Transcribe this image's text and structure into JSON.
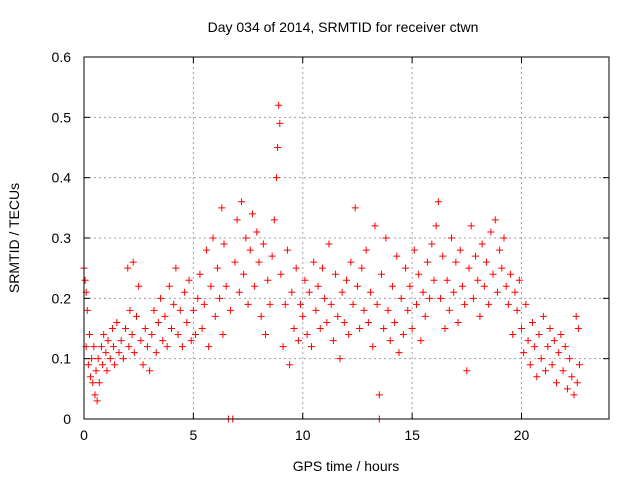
{
  "chart_data": {
    "type": "scatter",
    "title": "Day 034 of 2014, SRMTID for receiver ctwn",
    "xlabel": "GPS time / hours",
    "ylabel": "SRMTID / TECUs",
    "xlim": [
      0,
      24
    ],
    "ylim": [
      0,
      0.6
    ],
    "x_ticks": [
      0,
      5,
      10,
      15,
      20
    ],
    "x_tick_labels": [
      "0",
      "5",
      "10",
      "15",
      "20"
    ],
    "y_ticks": [
      0,
      0.1,
      0.2,
      0.3,
      0.4,
      0.5,
      0.6
    ],
    "y_tick_labels": [
      "0",
      "0.1",
      "0.2",
      "0.3",
      "0.4",
      "0.5",
      "0.6"
    ],
    "grid": true,
    "marker": "plus",
    "marker_color": "#ff0000",
    "series": [
      {
        "name": "SRMTID",
        "points": [
          [
            0.0,
            0.25
          ],
          [
            0.05,
            0.23
          ],
          [
            0.1,
            0.21
          ],
          [
            0.1,
            0.12
          ],
          [
            0.15,
            0.18
          ],
          [
            0.2,
            0.09
          ],
          [
            0.25,
            0.14
          ],
          [
            0.3,
            0.07
          ],
          [
            0.35,
            0.1
          ],
          [
            0.4,
            0.06
          ],
          [
            0.45,
            0.12
          ],
          [
            0.5,
            0.04
          ],
          [
            0.55,
            0.08
          ],
          [
            0.6,
            0.03
          ],
          [
            0.65,
            0.1
          ],
          [
            0.7,
            0.06
          ],
          [
            0.8,
            0.12
          ],
          [
            0.85,
            0.09
          ],
          [
            0.9,
            0.14
          ],
          [
            1.0,
            0.11
          ],
          [
            1.05,
            0.08
          ],
          [
            1.1,
            0.13
          ],
          [
            1.2,
            0.1
          ],
          [
            1.3,
            0.15
          ],
          [
            1.35,
            0.12
          ],
          [
            1.4,
            0.09
          ],
          [
            1.5,
            0.16
          ],
          [
            1.6,
            0.11
          ],
          [
            1.7,
            0.13
          ],
          [
            1.8,
            0.1
          ],
          [
            1.9,
            0.15
          ],
          [
            2.0,
            0.25
          ],
          [
            2.05,
            0.12
          ],
          [
            2.1,
            0.18
          ],
          [
            2.2,
            0.14
          ],
          [
            2.25,
            0.26
          ],
          [
            2.3,
            0.11
          ],
          [
            2.4,
            0.17
          ],
          [
            2.5,
            0.22
          ],
          [
            2.6,
            0.13
          ],
          [
            2.7,
            0.09
          ],
          [
            2.8,
            0.15
          ],
          [
            2.9,
            0.12
          ],
          [
            3.0,
            0.08
          ],
          [
            3.1,
            0.14
          ],
          [
            3.2,
            0.18
          ],
          [
            3.3,
            0.11
          ],
          [
            3.4,
            0.16
          ],
          [
            3.5,
            0.2
          ],
          [
            3.6,
            0.13
          ],
          [
            3.7,
            0.17
          ],
          [
            3.8,
            0.12
          ],
          [
            3.9,
            0.22
          ],
          [
            4.0,
            0.15
          ],
          [
            4.1,
            0.19
          ],
          [
            4.2,
            0.25
          ],
          [
            4.3,
            0.14
          ],
          [
            4.4,
            0.18
          ],
          [
            4.5,
            0.12
          ],
          [
            4.6,
            0.21
          ],
          [
            4.7,
            0.16
          ],
          [
            4.8,
            0.23
          ],
          [
            4.9,
            0.13
          ],
          [
            5.0,
            0.18
          ],
          [
            5.1,
            0.14
          ],
          [
            5.2,
            0.2
          ],
          [
            5.3,
            0.24
          ],
          [
            5.4,
            0.15
          ],
          [
            5.5,
            0.19
          ],
          [
            5.6,
            0.28
          ],
          [
            5.7,
            0.12
          ],
          [
            5.8,
            0.22
          ],
          [
            5.9,
            0.3
          ],
          [
            6.0,
            0.17
          ],
          [
            6.1,
            0.25
          ],
          [
            6.2,
            0.2
          ],
          [
            6.3,
            0.35
          ],
          [
            6.35,
            0.14
          ],
          [
            6.4,
            0.29
          ],
          [
            6.5,
            0.22
          ],
          [
            6.6,
            0.0
          ],
          [
            6.8,
            0.0
          ],
          [
            6.7,
            0.18
          ],
          [
            6.9,
            0.26
          ],
          [
            7.0,
            0.33
          ],
          [
            7.1,
            0.21
          ],
          [
            7.2,
            0.36
          ],
          [
            7.3,
            0.24
          ],
          [
            7.4,
            0.3
          ],
          [
            7.5,
            0.19
          ],
          [
            7.6,
            0.28
          ],
          [
            7.7,
            0.34
          ],
          [
            7.8,
            0.22
          ],
          [
            7.9,
            0.31
          ],
          [
            8.0,
            0.26
          ],
          [
            8.1,
            0.17
          ],
          [
            8.2,
            0.29
          ],
          [
            8.3,
            0.14
          ],
          [
            8.4,
            0.23
          ],
          [
            8.5,
            0.19
          ],
          [
            8.6,
            0.27
          ],
          [
            8.7,
            0.33
          ],
          [
            8.8,
            0.4
          ],
          [
            8.85,
            0.45
          ],
          [
            8.9,
            0.52
          ],
          [
            8.95,
            0.49
          ],
          [
            9.0,
            0.24
          ],
          [
            9.1,
            0.12
          ],
          [
            9.2,
            0.19
          ],
          [
            9.3,
            0.28
          ],
          [
            9.4,
            0.09
          ],
          [
            9.5,
            0.21
          ],
          [
            9.6,
            0.15
          ],
          [
            9.7,
            0.25
          ],
          [
            9.8,
            0.13
          ],
          [
            9.9,
            0.19
          ],
          [
            10.0,
            0.17
          ],
          [
            10.1,
            0.23
          ],
          [
            10.2,
            0.14
          ],
          [
            10.3,
            0.21
          ],
          [
            10.4,
            0.12
          ],
          [
            10.5,
            0.26
          ],
          [
            10.6,
            0.18
          ],
          [
            10.7,
            0.22
          ],
          [
            10.8,
            0.15
          ],
          [
            10.9,
            0.25
          ],
          [
            11.0,
            0.2
          ],
          [
            11.1,
            0.16
          ],
          [
            11.2,
            0.29
          ],
          [
            11.3,
            0.19
          ],
          [
            11.4,
            0.13
          ],
          [
            11.5,
            0.24
          ],
          [
            11.6,
            0.17
          ],
          [
            11.7,
            0.1
          ],
          [
            11.8,
            0.21
          ],
          [
            11.9,
            0.16
          ],
          [
            12.0,
            0.23
          ],
          [
            12.1,
            0.14
          ],
          [
            12.2,
            0.26
          ],
          [
            12.3,
            0.19
          ],
          [
            12.4,
            0.35
          ],
          [
            12.5,
            0.22
          ],
          [
            12.6,
            0.15
          ],
          [
            12.7,
            0.25
          ],
          [
            12.8,
            0.18
          ],
          [
            12.9,
            0.28
          ],
          [
            13.0,
            0.16
          ],
          [
            13.1,
            0.21
          ],
          [
            13.2,
            0.12
          ],
          [
            13.3,
            0.32
          ],
          [
            13.4,
            0.19
          ],
          [
            13.5,
            0.04
          ],
          [
            13.5,
            0.0
          ],
          [
            13.6,
            0.24
          ],
          [
            13.7,
            0.15
          ],
          [
            13.8,
            0.3
          ],
          [
            13.9,
            0.18
          ],
          [
            14.0,
            0.13
          ],
          [
            14.1,
            0.22
          ],
          [
            14.2,
            0.16
          ],
          [
            14.3,
            0.27
          ],
          [
            14.4,
            0.11
          ],
          [
            14.5,
            0.2
          ],
          [
            14.6,
            0.14
          ],
          [
            14.7,
            0.25
          ],
          [
            14.8,
            0.18
          ],
          [
            14.9,
            0.22
          ],
          [
            15.0,
            0.15
          ],
          [
            15.1,
            0.28
          ],
          [
            15.2,
            0.19
          ],
          [
            15.3,
            0.24
          ],
          [
            15.4,
            0.13
          ],
          [
            15.5,
            0.21
          ],
          [
            15.6,
            0.17
          ],
          [
            15.7,
            0.26
          ],
          [
            15.8,
            0.2
          ],
          [
            15.9,
            0.29
          ],
          [
            16.0,
            0.23
          ],
          [
            16.1,
            0.32
          ],
          [
            16.2,
            0.36
          ],
          [
            16.3,
            0.2
          ],
          [
            16.4,
            0.27
          ],
          [
            16.5,
            0.15
          ],
          [
            16.6,
            0.23
          ],
          [
            16.7,
            0.18
          ],
          [
            16.8,
            0.3
          ],
          [
            16.9,
            0.21
          ],
          [
            17.0,
            0.26
          ],
          [
            17.1,
            0.16
          ],
          [
            17.2,
            0.28
          ],
          [
            17.3,
            0.22
          ],
          [
            17.4,
            0.19
          ],
          [
            17.5,
            0.08
          ],
          [
            17.6,
            0.25
          ],
          [
            17.7,
            0.32
          ],
          [
            17.8,
            0.2
          ],
          [
            17.9,
            0.27
          ],
          [
            18.0,
            0.23
          ],
          [
            18.1,
            0.17
          ],
          [
            18.2,
            0.29
          ],
          [
            18.3,
            0.22
          ],
          [
            18.4,
            0.26
          ],
          [
            18.5,
            0.19
          ],
          [
            18.6,
            0.31
          ],
          [
            18.7,
            0.24
          ],
          [
            18.8,
            0.33
          ],
          [
            18.9,
            0.21
          ],
          [
            19.0,
            0.28
          ],
          [
            19.1,
            0.25
          ],
          [
            19.2,
            0.3
          ],
          [
            19.3,
            0.22
          ],
          [
            19.4,
            0.19
          ],
          [
            19.5,
            0.24
          ],
          [
            19.6,
            0.14
          ],
          [
            19.7,
            0.21
          ],
          [
            19.8,
            0.18
          ],
          [
            19.9,
            0.23
          ],
          [
            20.0,
            0.15
          ],
          [
            20.1,
            0.11
          ],
          [
            20.2,
            0.19
          ],
          [
            20.3,
            0.13
          ],
          [
            20.4,
            0.09
          ],
          [
            20.5,
            0.16
          ],
          [
            20.6,
            0.12
          ],
          [
            20.7,
            0.07
          ],
          [
            20.8,
            0.14
          ],
          [
            20.9,
            0.1
          ],
          [
            21.0,
            0.17
          ],
          [
            21.1,
            0.08
          ],
          [
            21.2,
            0.12
          ],
          [
            21.3,
            0.15
          ],
          [
            21.4,
            0.09
          ],
          [
            21.5,
            0.13
          ],
          [
            21.6,
            0.06
          ],
          [
            21.7,
            0.11
          ],
          [
            21.8,
            0.14
          ],
          [
            21.9,
            0.08
          ],
          [
            22.0,
            0.12
          ],
          [
            22.1,
            0.05
          ],
          [
            22.2,
            0.1
          ],
          [
            22.3,
            0.07
          ],
          [
            22.4,
            0.04
          ],
          [
            22.5,
            0.17
          ],
          [
            22.55,
            0.06
          ],
          [
            22.6,
            0.15
          ],
          [
            22.65,
            0.09
          ]
        ]
      }
    ]
  }
}
